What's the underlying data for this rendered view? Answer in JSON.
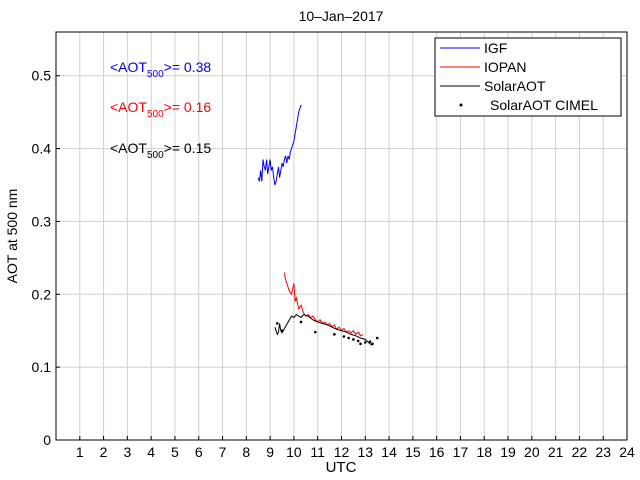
{
  "chart_data": {
    "type": "line",
    "title": "10–Jan–2017",
    "xlabel": "UTC",
    "ylabel": "AOT at 500 nm",
    "xlim": [
      0,
      24
    ],
    "ylim": [
      0,
      0.56
    ],
    "xticks": [
      1,
      2,
      3,
      4,
      5,
      6,
      7,
      8,
      9,
      10,
      11,
      12,
      13,
      14,
      15,
      16,
      17,
      18,
      19,
      20,
      21,
      22,
      23,
      24
    ],
    "yticks": [
      0,
      0.1,
      0.2,
      0.3,
      0.4,
      0.5
    ],
    "ytick_labels": [
      "0",
      "0.1",
      "0.2",
      "0.3",
      "0.4",
      "0.5"
    ],
    "grid": true,
    "legend": "top-right",
    "annotations": [
      {
        "prefix": "<AOT",
        "sub": "500",
        "suffix": ">= 0.38",
        "color": "#0000ff"
      },
      {
        "prefix": "<AOT",
        "sub": "500",
        "suffix": ">= 0.16",
        "color": "#ff0000"
      },
      {
        "prefix": "<AOT",
        "sub": "500",
        "suffix": ">= 0.15",
        "color": "#000000"
      }
    ],
    "series": [
      {
        "name": "IGF",
        "kind": "line",
        "color": "#0000ff",
        "x": [
          8.5,
          8.55,
          8.6,
          8.65,
          8.7,
          8.75,
          8.8,
          8.85,
          8.9,
          8.95,
          9.0,
          9.05,
          9.1,
          9.15,
          9.2,
          9.25,
          9.3,
          9.35,
          9.4,
          9.45,
          9.5,
          9.55,
          9.6,
          9.65,
          9.7,
          9.75,
          9.8,
          9.85,
          9.9,
          9.95,
          10.0,
          10.05,
          10.1,
          10.15,
          10.2,
          10.25,
          10.3
        ],
        "y": [
          0.36,
          0.355,
          0.37,
          0.355,
          0.385,
          0.375,
          0.37,
          0.385,
          0.365,
          0.375,
          0.385,
          0.37,
          0.375,
          0.36,
          0.35,
          0.355,
          0.365,
          0.375,
          0.36,
          0.37,
          0.38,
          0.375,
          0.385,
          0.39,
          0.38,
          0.39,
          0.385,
          0.395,
          0.4,
          0.405,
          0.41,
          0.42,
          0.43,
          0.44,
          0.45,
          0.455,
          0.46
        ]
      },
      {
        "name": "IOPAN",
        "kind": "line",
        "color": "#ff0000",
        "x": [
          9.6,
          9.65,
          9.7,
          9.8,
          9.9,
          10.0,
          10.05,
          10.1,
          10.2,
          10.3,
          10.4,
          10.5,
          10.6,
          10.7,
          10.8,
          10.9,
          11.0,
          11.1,
          11.2,
          11.3,
          11.4,
          11.5,
          11.6,
          11.7,
          11.8,
          11.9,
          12.0,
          12.1,
          12.2,
          12.3,
          12.4,
          12.5,
          12.6,
          12.7,
          12.8,
          12.9
        ],
        "y": [
          0.23,
          0.22,
          0.215,
          0.205,
          0.2,
          0.215,
          0.19,
          0.195,
          0.18,
          0.185,
          0.175,
          0.17,
          0.172,
          0.168,
          0.17,
          0.165,
          0.162,
          0.165,
          0.16,
          0.162,
          0.158,
          0.16,
          0.155,
          0.158,
          0.152,
          0.155,
          0.15,
          0.153,
          0.148,
          0.15,
          0.147,
          0.15,
          0.145,
          0.148,
          0.143,
          0.145
        ]
      },
      {
        "name": "SolarAOT",
        "kind": "line",
        "color": "#000000",
        "x": [
          9.2,
          9.25,
          9.3,
          9.35,
          9.4,
          9.45,
          9.5,
          9.9,
          10.0,
          10.1,
          10.2,
          10.3,
          10.4,
          10.6,
          10.8,
          11.0,
          11.2,
          11.4,
          11.6,
          11.8,
          12.0,
          12.2,
          12.4,
          12.6,
          12.8,
          13.0,
          13.1,
          13.2,
          13.3
        ],
        "y": [
          0.155,
          0.15,
          0.145,
          0.148,
          0.16,
          0.15,
          0.147,
          0.17,
          0.168,
          0.172,
          0.17,
          0.168,
          0.172,
          0.17,
          0.165,
          0.162,
          0.16,
          0.158,
          0.155,
          0.152,
          0.15,
          0.148,
          0.145,
          0.143,
          0.14,
          0.138,
          0.135,
          0.132,
          0.13
        ]
      },
      {
        "name": "SolarAOT CIMEL",
        "kind": "scatter",
        "color": "#000000",
        "x": [
          9.3,
          9.5,
          10.3,
          10.9,
          11.7,
          12.1,
          12.3,
          12.5,
          12.7,
          12.8,
          13.0,
          13.2,
          13.3,
          13.5
        ],
        "y": [
          0.16,
          0.15,
          0.162,
          0.148,
          0.145,
          0.142,
          0.14,
          0.138,
          0.136,
          0.132,
          0.134,
          0.135,
          0.132,
          0.14
        ]
      }
    ]
  }
}
